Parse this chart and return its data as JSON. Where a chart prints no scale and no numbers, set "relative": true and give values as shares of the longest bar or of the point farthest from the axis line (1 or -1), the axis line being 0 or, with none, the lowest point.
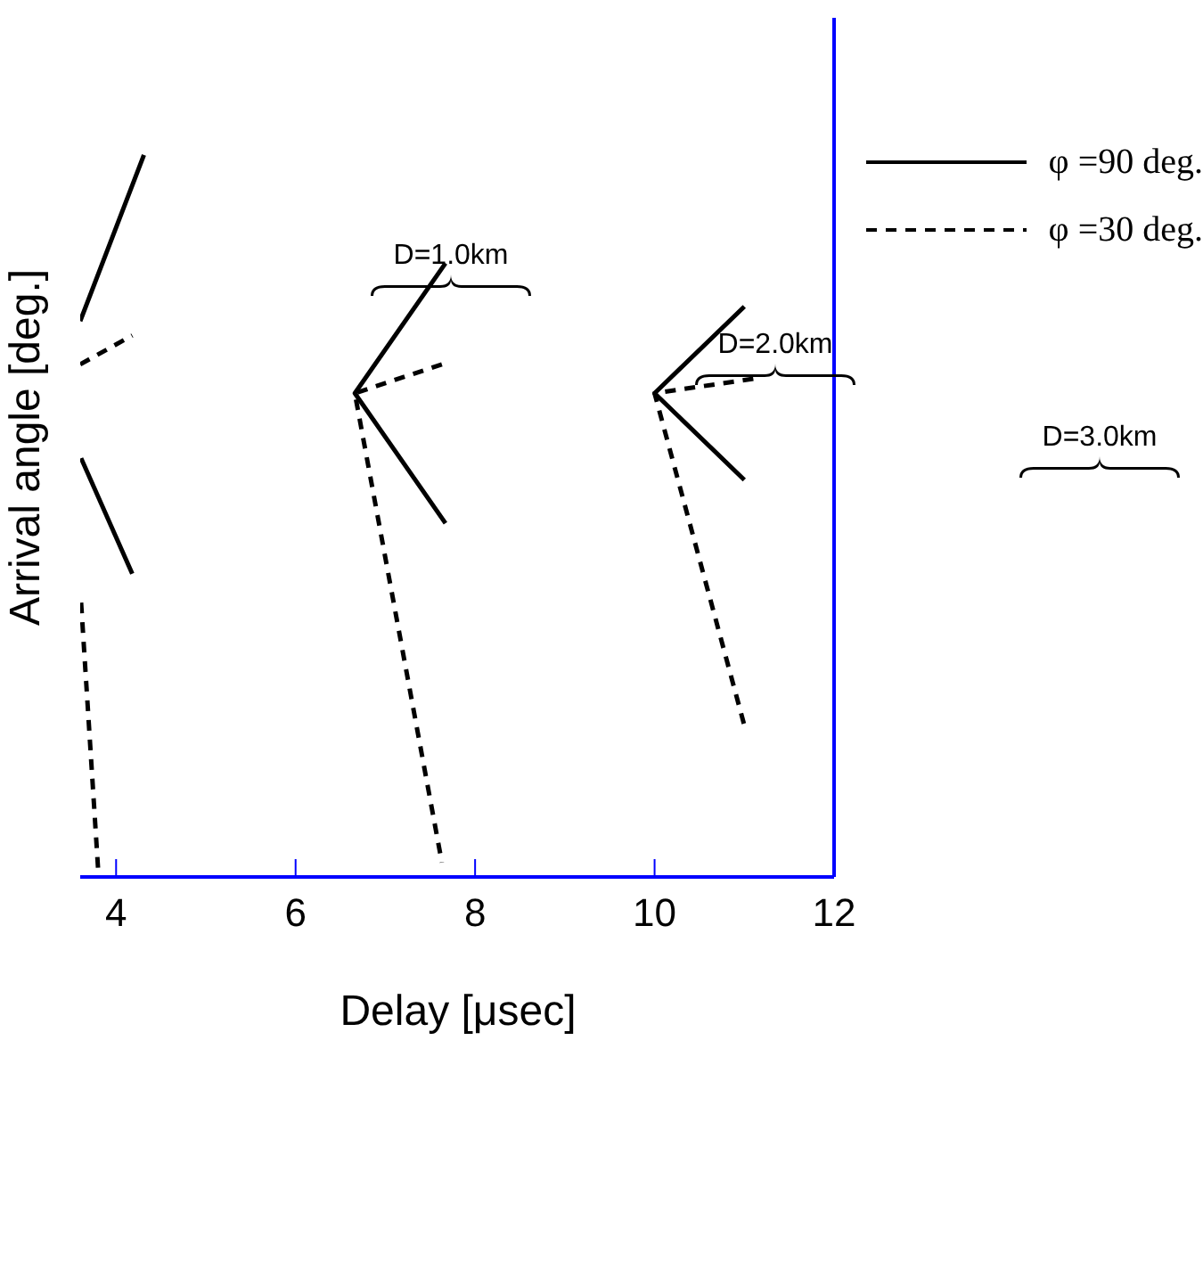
{
  "chart_data": {
    "type": "line",
    "relative": true,
    "xlabel": "Delay [μsec]",
    "ylabel": "Arrival angle [deg.]",
    "xlim": [
      3.6,
      12
    ],
    "xticks": [
      4,
      6,
      8,
      10,
      12
    ],
    "legend": "top right",
    "marker": "none",
    "annotations": [
      "D=1.0km",
      "D=2.0km",
      "D=3.0km"
    ],
    "series": [
      {
        "name": "φ =90 deg.",
        "color": "#000000",
        "line_style": "solid",
        "x": [
          3.6,
          4.31,
          null,
          3.61,
          4.18,
          null,
          7.67,
          6.66,
          7.67,
          null,
          11.0,
          10.0,
          11.0
        ],
        "values": [
          0.77,
          1.0,
          null,
          0.58,
          0.42,
          null,
          0.85,
          0.67,
          0.49,
          null,
          0.79,
          0.67,
          0.55
        ]
      },
      {
        "name": "φ =30 deg.",
        "color": "#000000",
        "line_style": "dashed",
        "x": [
          3.6,
          4.18,
          null,
          3.61,
          3.8,
          null,
          7.63,
          6.66,
          7.63,
          null,
          11.1,
          10.0,
          11.0
        ],
        "values": [
          0.71,
          0.75,
          null,
          0.38,
          0.01,
          null,
          0.71,
          0.67,
          0.02,
          null,
          0.69,
          0.67,
          0.21
        ]
      }
    ]
  }
}
